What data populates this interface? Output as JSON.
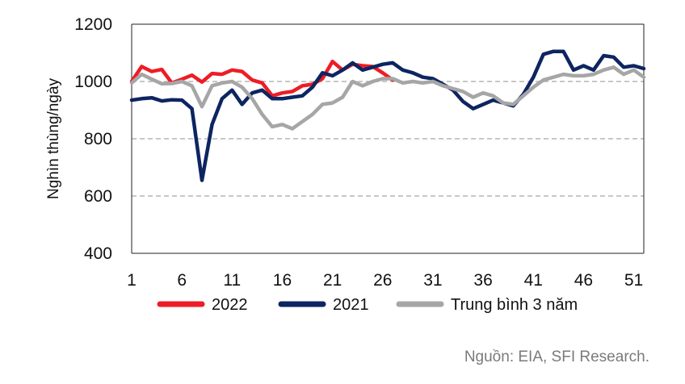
{
  "chart_data": {
    "type": "line",
    "xlabel": "",
    "ylabel": "Nghìn thùng/ngày",
    "ylim": [
      400,
      1200
    ],
    "xlim": [
      1,
      52
    ],
    "y_ticks": [
      "400",
      "600",
      "800",
      "1000",
      "1200"
    ],
    "x_ticks": [
      "1",
      "6",
      "11",
      "16",
      "21",
      "26",
      "31",
      "36",
      "41",
      "46",
      "51"
    ],
    "grid": "horizontal dashed",
    "legend_position": "bottom",
    "series": [
      {
        "name": "2022",
        "color": "#ee1c25",
        "x": [
          1,
          2,
          3,
          4,
          5,
          6,
          7,
          8,
          9,
          10,
          11,
          12,
          13,
          14,
          15,
          16,
          17,
          18,
          19,
          20,
          21,
          22,
          23,
          24,
          25,
          26,
          27
        ],
        "values": [
          1000,
          1052,
          1035,
          1042,
          995,
          1008,
          1022,
          998,
          1028,
          1025,
          1040,
          1035,
          1005,
          995,
          950,
          960,
          965,
          985,
          990,
          1010,
          1070,
          1040,
          1060,
          1055,
          1052,
          1030,
          1005
        ]
      },
      {
        "name": "2021",
        "color": "#0d2560",
        "x": [
          1,
          2,
          3,
          4,
          5,
          6,
          7,
          8,
          9,
          10,
          11,
          12,
          13,
          14,
          15,
          16,
          17,
          18,
          19,
          20,
          21,
          22,
          23,
          24,
          25,
          26,
          27,
          28,
          29,
          30,
          31,
          32,
          33,
          34,
          35,
          36,
          37,
          38,
          39,
          40,
          41,
          42,
          43,
          44,
          45,
          46,
          47,
          48,
          49,
          50,
          51,
          52
        ],
        "values": [
          935,
          940,
          943,
          932,
          936,
          935,
          905,
          655,
          850,
          940,
          970,
          920,
          960,
          970,
          940,
          940,
          945,
          950,
          980,
          1030,
          1020,
          1040,
          1065,
          1040,
          1050,
          1060,
          1065,
          1040,
          1030,
          1015,
          1010,
          990,
          970,
          930,
          905,
          920,
          935,
          925,
          915,
          955,
          1015,
          1095,
          1105,
          1105,
          1040,
          1055,
          1040,
          1090,
          1085,
          1050,
          1055,
          1045
        ]
      },
      {
        "name": "Trung bình 3 năm",
        "color": "#a6a6a6",
        "x": [
          1,
          2,
          3,
          4,
          5,
          6,
          7,
          8,
          9,
          10,
          11,
          12,
          13,
          14,
          15,
          16,
          17,
          18,
          19,
          20,
          21,
          22,
          23,
          24,
          25,
          26,
          27,
          28,
          29,
          30,
          31,
          32,
          33,
          34,
          35,
          36,
          37,
          38,
          39,
          40,
          41,
          42,
          43,
          44,
          45,
          46,
          47,
          48,
          49,
          50,
          51,
          52
        ],
        "values": [
          995,
          1025,
          1008,
          992,
          993,
          1000,
          985,
          912,
          985,
          995,
          1000,
          980,
          940,
          885,
          842,
          850,
          835,
          860,
          885,
          920,
          925,
          945,
          1000,
          985,
          1000,
          1010,
          1010,
          995,
          1000,
          995,
          1000,
          985,
          975,
          965,
          945,
          960,
          950,
          925,
          920,
          950,
          980,
          1005,
          1015,
          1025,
          1020,
          1020,
          1025,
          1040,
          1050,
          1025,
          1040,
          1015
        ]
      }
    ]
  },
  "source": "Nguồn: EIA, SFI Research."
}
